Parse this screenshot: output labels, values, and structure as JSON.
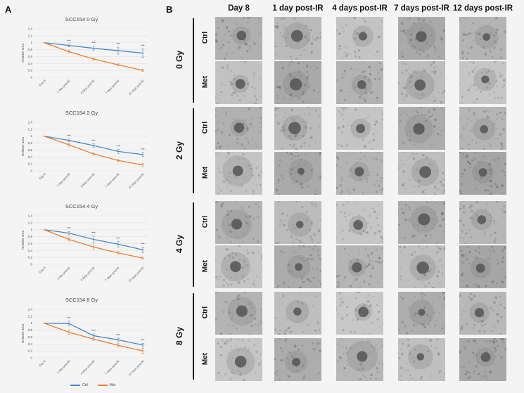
{
  "panels": {
    "a": "A",
    "b": "B"
  },
  "charts": {
    "y_ticks": [
      "0",
      "0,2",
      "0,4",
      "0,6",
      "0,8",
      "1",
      "1,2",
      "1,4"
    ],
    "x_ticks": [
      "Day 8",
      "1 day post-IR",
      "4 days post-IR",
      "7 days post-IR",
      "12 days post-IR"
    ],
    "ylabel": "Relative area",
    "significance": "***",
    "legend": {
      "ctrl": "Ctrl",
      "met": "Met"
    },
    "colors": {
      "ctrl": "#4a86c5",
      "met": "#ed7d31",
      "grid": "#e2e2e2"
    }
  },
  "chart_data": [
    {
      "type": "line",
      "title": "SCC154 0 Gy",
      "ylim": [
        0,
        1.4
      ],
      "x": [
        "Day 8",
        "1 day post-IR",
        "4 days post-IR",
        "7 days post-IR",
        "12 days post-IR"
      ],
      "series": [
        {
          "name": "Ctrl",
          "values": [
            1.0,
            0.92,
            0.84,
            0.77,
            0.7
          ],
          "errors": [
            0,
            0.04,
            0.06,
            0.1,
            0.12
          ]
        },
        {
          "name": "Met",
          "values": [
            1.0,
            0.74,
            0.53,
            0.36,
            0.2
          ],
          "errors": [
            0,
            0.04,
            0.03,
            0.03,
            0.03
          ]
        }
      ]
    },
    {
      "type": "line",
      "title": "SCC154 2 Gy",
      "ylim": [
        0,
        1.4
      ],
      "x": [
        "Day 8",
        "1 day post-IR",
        "4 days post-IR",
        "7 days post-IR",
        "12 days post-IR"
      ],
      "series": [
        {
          "name": "Ctrl",
          "values": [
            1.0,
            0.88,
            0.73,
            0.56,
            0.47
          ],
          "errors": [
            0,
            0.04,
            0.05,
            0.06,
            0.06
          ]
        },
        {
          "name": "Met",
          "values": [
            1.0,
            0.75,
            0.49,
            0.3,
            0.17
          ],
          "errors": [
            0,
            0.04,
            0.03,
            0.03,
            0.05
          ]
        }
      ]
    },
    {
      "type": "line",
      "title": "SCC154 4 Gy",
      "ylim": [
        0,
        1.4
      ],
      "x": [
        "Day 8",
        "1 day post-IR",
        "4 days post-IR",
        "7 days post-IR",
        "12 days post-IR"
      ],
      "series": [
        {
          "name": "Ctrl",
          "values": [
            1.0,
            0.9,
            0.72,
            0.58,
            0.42
          ],
          "errors": [
            0,
            0.05,
            0.1,
            0.08,
            0.08
          ]
        },
        {
          "name": "Met",
          "values": [
            1.0,
            0.72,
            0.5,
            0.33,
            0.18
          ],
          "errors": [
            0,
            0.05,
            0.06,
            0.04,
            0.03
          ]
        }
      ]
    },
    {
      "type": "line",
      "title": "SCC154 8 Gy",
      "ylim": [
        0,
        1.4
      ],
      "x": [
        "Day 8",
        "1 day post-IR",
        "4 days post-IR",
        "7 days post-IR",
        "12 days post-IR"
      ],
      "series": [
        {
          "name": "Ctrl",
          "values": [
            1.0,
            0.99,
            0.64,
            0.52,
            0.37
          ],
          "errors": [
            0,
            0.07,
            0.05,
            0.05,
            0.05
          ]
        },
        {
          "name": "Met",
          "values": [
            1.0,
            0.74,
            0.54,
            0.36,
            0.2
          ],
          "errors": [
            0,
            0.07,
            0.04,
            0.05,
            0.07
          ]
        }
      ]
    }
  ],
  "grid": {
    "columns": [
      "Day 8",
      "1 day post-IR",
      "4 days post-IR",
      "7 days post-IR",
      "12 days post-IR"
    ],
    "groups": [
      {
        "dose": "0 Gy",
        "rows": [
          "Ctrl",
          "Met"
        ]
      },
      {
        "dose": "2 Gy",
        "rows": [
          "Ctrl",
          "Met"
        ]
      },
      {
        "dose": "4 Gy",
        "rows": [
          "Ctrl",
          "Met"
        ]
      },
      {
        "dose": "8 Gy",
        "rows": [
          "Ctrl",
          "Met"
        ]
      }
    ]
  }
}
